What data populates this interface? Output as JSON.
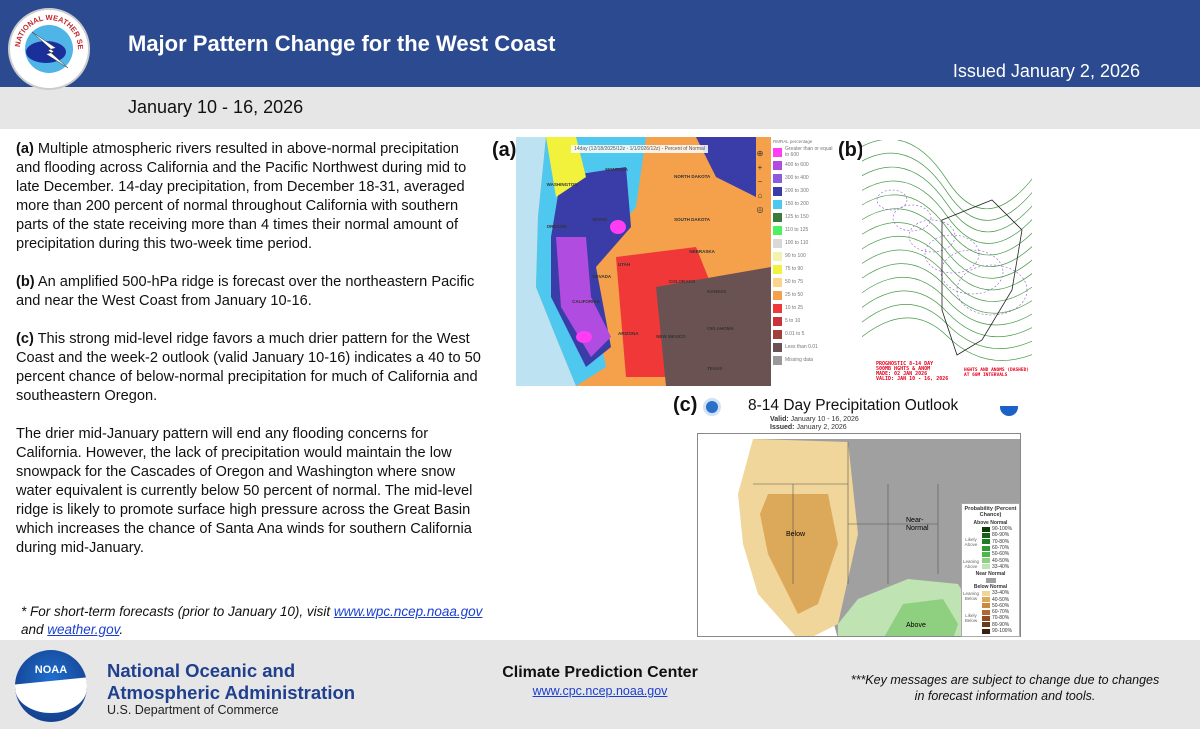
{
  "header": {
    "title": "Major Pattern Change for the West Coast",
    "issued": "Issued January 2, 2026",
    "date_range": "January 10 - 16, 2026",
    "logo_text": "NATIONAL WEATHER SERVICE",
    "brand_color": "#2b4a8f"
  },
  "body": {
    "p1_label": "(a)",
    "p1": " Multiple atmospheric rivers resulted in above-normal precipitation and flooding across California and the Pacific Northwest during mid to late December. 14-day precipitation, from December 18-31, averaged more than 200 percent of normal throughout California with southern parts of the state receiving more than 4 times their normal amount of precipitation during this two-week time period.",
    "p2_label": "(b)",
    "p2": " An amplified 500-hPa ridge is forecast over the northeastern Pacific and near the West Coast from January 10-16.",
    "p3_label": "(c)",
    "p3": " This strong mid-level ridge favors a much drier pattern for the West Coast and the week-2 outlook (valid January 10-16) indicates a 40 to 50 percent chance of below-normal precipitation for much of California and southeastern Oregon.",
    "p4": "The drier mid-January pattern will end any flooding concerns for California. However, the lack of precipitation would maintain the low snowpack for the Cascades of Oregon and Washington where snow water equivalent is currently below 50 percent of normal. The mid-level ridge is likely to promote surface high pressure across the Great Basin which increases the chance of Santa Ana winds for southern California during mid-January.",
    "note_pre": " * For short-term forecasts (prior to January 10), visit ",
    "note_link1": "www.wpc.ncep.noaa.gov",
    "note_mid": " and ",
    "note_link2": "weather.gov",
    "note_end": "."
  },
  "panel_a": {
    "label": "(a)",
    "map_title": "14day (12/18/2025/12z - 1/1/2026/12z) - Percent of Normal",
    "legend_title": "RMRAL percentage",
    "legend": [
      {
        "label": "Greater than or equal to 600",
        "color": "#ff3df5"
      },
      {
        "label": "400 to 600",
        "color": "#b04ce0"
      },
      {
        "label": "300 to 400",
        "color": "#8a5ce0"
      },
      {
        "label": "200 to 300",
        "color": "#3a3da8"
      },
      {
        "label": "150 to 200",
        "color": "#4fc8f0"
      },
      {
        "label": "125 to 150",
        "color": "#3a7a3a"
      },
      {
        "label": "110 to 125",
        "color": "#4cf060"
      },
      {
        "label": "100 to 110",
        "color": "#d9d9d9"
      },
      {
        "label": "90 to 100",
        "color": "#f3f3b0"
      },
      {
        "label": "75 to 90",
        "color": "#f2f23c"
      },
      {
        "label": "50 to 75",
        "color": "#fcd48a"
      },
      {
        "label": "25 to 50",
        "color": "#f5a04a"
      },
      {
        "label": "10 to 25",
        "color": "#f03838"
      },
      {
        "label": "5 to 10",
        "color": "#c8343a"
      },
      {
        "label": "0.01 to 5",
        "color": "#a0403c"
      },
      {
        "label": "Less than 0.01",
        "color": "#6a5252"
      },
      {
        "label": "Missing data",
        "color": "#999999"
      }
    ],
    "states": [
      "WASHINGTON",
      "MONTANA",
      "NORTH DAKOTA",
      "OREGON",
      "IDAHO",
      "SOUTH DAKOTA",
      "NEBRASKA",
      "NEVADA",
      "UTAH",
      "COLORADO",
      "KANSAS",
      "CALIFORNIA",
      "ARIZONA",
      "NEW MEXICO",
      "OKLAHOMA",
      "TEXAS"
    ]
  },
  "panel_b": {
    "label": "(b)",
    "prog_text": "PROGNOSTIC 8-14 DAY\n500MB HGHTS & ANOM\nMADE: 02 JAN 2026\nVALID: JAN 10 - 16, 2026",
    "note_text": "HGHTS AND ANOMS (DASHED)\nAT 60M INTERVALS"
  },
  "panel_c": {
    "label": "(c)",
    "title": "8-14 Day Precipitation Outlook",
    "valid_label": "Valid:",
    "valid": "January 10 - 16, 2026",
    "issued_label": "Issued:",
    "issued": "January 2, 2026",
    "region_below": "Below",
    "region_near": "Near-\nNormal",
    "region_above": "Above",
    "legend_title": "Probability (Percent Chance)",
    "above_title": "Above Normal",
    "near_title": "Near Normal",
    "below_title": "Below Normal",
    "likely_above": "Likely Above",
    "leaning_above": "Leaning Above",
    "leaning_below": "Leaning Below",
    "likely_below": "Likely Below",
    "above": [
      {
        "label": "90-100%",
        "color": "#0b3d0b"
      },
      {
        "label": "80-90%",
        "color": "#16601a"
      },
      {
        "label": "70-80%",
        "color": "#1e7d23"
      },
      {
        "label": "60-70%",
        "color": "#2f9a30"
      },
      {
        "label": "50-60%",
        "color": "#4cb84a"
      },
      {
        "label": "40-50%",
        "color": "#8ed080"
      },
      {
        "label": "33-40%",
        "color": "#bfe3b2"
      }
    ],
    "near_color": "#a0a0a0",
    "below": [
      {
        "label": "33-40%",
        "color": "#f0d69a"
      },
      {
        "label": "40-50%",
        "color": "#dca85a"
      },
      {
        "label": "50-60%",
        "color": "#c98a3a"
      },
      {
        "label": "60-70%",
        "color": "#b06a30"
      },
      {
        "label": "70-80%",
        "color": "#904a28"
      },
      {
        "label": "80-90%",
        "color": "#6a3a1c"
      },
      {
        "label": "90-100%",
        "color": "#3a2010"
      }
    ]
  },
  "footer": {
    "org1": "National Oceanic and",
    "org2": "Atmospheric Administration",
    "dept": "U.S. Department of Commerce",
    "noaa_logo": "NOAA",
    "cpc": "Climate Prediction Center",
    "cpc_link": "www.cpc.ncep.noaa.gov",
    "key_messages": "***Key messages are subject to change due to changes in forecast information and tools."
  }
}
